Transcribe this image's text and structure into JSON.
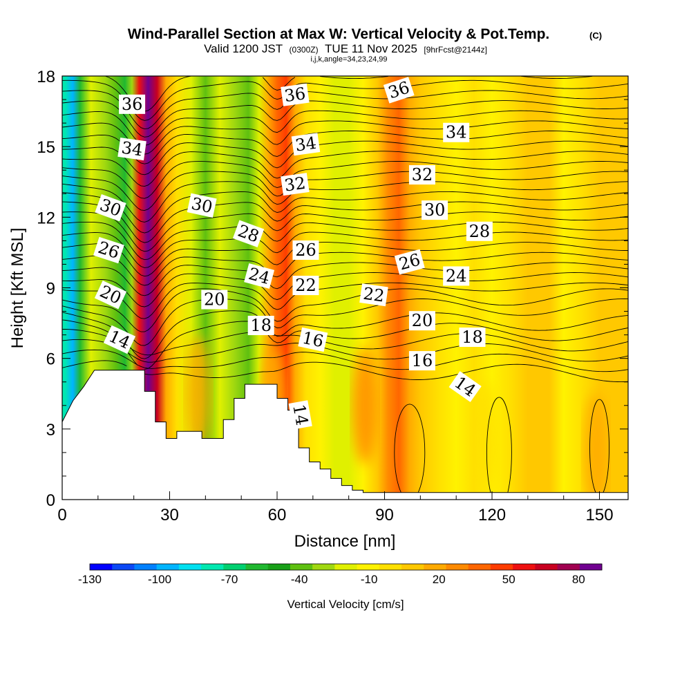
{
  "chart_data": {
    "type": "heatmap",
    "title": "Wind-Parallel Section at Max W: Vertical Velocity & Pot.Temp.",
    "title_mark": "(C)",
    "subtitle_valid": "Valid 1200 JST",
    "subtitle_utc": "(0300Z)",
    "subtitle_date": "TUE 11 Nov 2025",
    "subtitle_fcst": "[9hrFcst@2144z]",
    "subtitle_indices": "i,j,k,angle=34,23,24,99",
    "xlabel": "Distance [nm]",
    "ylabel": "Height [Kft MSL]",
    "xlim": [
      0,
      158
    ],
    "ylim": [
      0,
      18
    ],
    "x_ticks": [
      "0",
      "30",
      "60",
      "90",
      "120",
      "150"
    ],
    "y_ticks": [
      "0",
      "3",
      "6",
      "9",
      "12",
      "15",
      "18"
    ],
    "colorbar": {
      "label": "Vertical Velocity [cm/s]",
      "tick_labels": [
        "-130",
        "-100",
        "-70",
        "-40",
        "-10",
        "20",
        "50",
        "80"
      ],
      "min": -130,
      "max": 90,
      "step": 10,
      "colors": [
        "#0000ff",
        "#0b48f5",
        "#0080ff",
        "#00b4ff",
        "#00e0f0",
        "#00e8b0",
        "#00d070",
        "#20b830",
        "#18a018",
        "#5ec010",
        "#a0d810",
        "#e0f000",
        "#fff200",
        "#ffe000",
        "#ffc800",
        "#ffaa00",
        "#ff8a00",
        "#ff6600",
        "#ff3c00",
        "#ee1010",
        "#c80020",
        "#a00050",
        "#700090"
      ]
    },
    "w_bands": [
      {
        "x": 0.8,
        "w": -80
      },
      {
        "x": 3,
        "w": -100
      },
      {
        "x": 5,
        "w": -60
      },
      {
        "x": 8,
        "w": -20
      },
      {
        "x": 12,
        "w": -30
      },
      {
        "x": 15,
        "w": -40
      },
      {
        "x": 17.5,
        "w": -60
      },
      {
        "x": 19.5,
        "w": -30
      },
      {
        "x": 21.5,
        "w": 60
      },
      {
        "x": 24,
        "w": 90
      },
      {
        "x": 26.5,
        "w": 70
      },
      {
        "x": 29,
        "w": 20
      },
      {
        "x": 32,
        "w": 0
      },
      {
        "x": 36,
        "w": -20
      },
      {
        "x": 40,
        "w": -40
      },
      {
        "x": 44,
        "w": -20
      },
      {
        "x": 48,
        "w": -30
      },
      {
        "x": 52,
        "w": -40
      },
      {
        "x": 55,
        "w": -20
      },
      {
        "x": 57.5,
        "w": 20
      },
      {
        "x": 60,
        "w": 40
      },
      {
        "x": 62.5,
        "w": 50
      },
      {
        "x": 65,
        "w": 20
      },
      {
        "x": 68,
        "w": 0
      },
      {
        "x": 72,
        "w": -10
      },
      {
        "x": 76,
        "w": -20
      },
      {
        "x": 80,
        "w": -20
      },
      {
        "x": 84,
        "w": -10
      },
      {
        "x": 88,
        "w": 10
      },
      {
        "x": 91,
        "w": 30
      },
      {
        "x": 94,
        "w": 40
      },
      {
        "x": 97,
        "w": 20
      },
      {
        "x": 100,
        "w": 10
      },
      {
        "x": 105,
        "w": 0
      },
      {
        "x": 110,
        "w": -10
      },
      {
        "x": 115,
        "w": 0
      },
      {
        "x": 120,
        "w": -10
      },
      {
        "x": 125,
        "w": 0
      },
      {
        "x": 130,
        "w": 10
      },
      {
        "x": 136,
        "w": 10
      },
      {
        "x": 140,
        "w": -10
      },
      {
        "x": 145,
        "w": 0
      },
      {
        "x": 150,
        "w": 10
      },
      {
        "x": 155,
        "w": 10
      }
    ],
    "low_level_blobs": [
      {
        "x": 84.5,
        "y": 4.0,
        "w": 30
      },
      {
        "x": 59,
        "y": 4.0,
        "w": 20
      },
      {
        "x": 38,
        "y": 4.5,
        "w": 20
      },
      {
        "x": 149,
        "y": 2.0,
        "w": 20
      },
      {
        "x": 118,
        "y": 2.5,
        "w": 0
      }
    ],
    "terrain_kft": [
      [
        0,
        3.3
      ],
      [
        3,
        4.2
      ],
      [
        6,
        4.8
      ],
      [
        9,
        5.5
      ],
      [
        23,
        5.5
      ],
      [
        23,
        4.6
      ],
      [
        26,
        4.6
      ],
      [
        26,
        3.3
      ],
      [
        29,
        3.3
      ],
      [
        29,
        2.6
      ],
      [
        32,
        2.6
      ],
      [
        32,
        2.9
      ],
      [
        39,
        2.9
      ],
      [
        39,
        2.6
      ],
      [
        45,
        2.6
      ],
      [
        45,
        3.4
      ],
      [
        48,
        3.4
      ],
      [
        48,
        4.3
      ],
      [
        51,
        4.3
      ],
      [
        51,
        4.9
      ],
      [
        60,
        4.9
      ],
      [
        60,
        4.3
      ],
      [
        63,
        4.3
      ],
      [
        63,
        3.8
      ],
      [
        66,
        3.8
      ],
      [
        66,
        2.2
      ],
      [
        69,
        2.2
      ],
      [
        69,
        1.6
      ],
      [
        72,
        1.6
      ],
      [
        72,
        1.3
      ],
      [
        75,
        1.3
      ],
      [
        75,
        0.9
      ],
      [
        78,
        0.9
      ],
      [
        78,
        0.6
      ],
      [
        81,
        0.6
      ],
      [
        81,
        0.4
      ],
      [
        84,
        0.4
      ],
      [
        84,
        0.3
      ],
      [
        158,
        0.3
      ]
    ],
    "isentrope_labels": [
      {
        "text": "36",
        "x": 19.5,
        "y": 16.8,
        "rot": 0
      },
      {
        "text": "34",
        "x": 19.5,
        "y": 14.9,
        "rot": 8
      },
      {
        "text": "30",
        "x": 13.5,
        "y": 12.4,
        "rot": 20
      },
      {
        "text": "26",
        "x": 13.0,
        "y": 10.6,
        "rot": 18
      },
      {
        "text": "20",
        "x": 13.5,
        "y": 8.7,
        "rot": 25
      },
      {
        "text": "14",
        "x": 16.0,
        "y": 6.8,
        "rot": 25
      },
      {
        "text": "30",
        "x": 39.0,
        "y": 12.5,
        "rot": 12
      },
      {
        "text": "28",
        "x": 52.0,
        "y": 11.3,
        "rot": 20
      },
      {
        "text": "24",
        "x": 55.0,
        "y": 9.5,
        "rot": 15
      },
      {
        "text": "20",
        "x": 42.5,
        "y": 8.5,
        "rot": 0
      },
      {
        "text": "18",
        "x": 55.5,
        "y": 7.4,
        "rot": 0
      },
      {
        "text": "14",
        "x": 66.5,
        "y": 3.6,
        "rot": 80
      },
      {
        "text": "36",
        "x": 65.0,
        "y": 17.2,
        "rot": -8
      },
      {
        "text": "34",
        "x": 68.0,
        "y": 15.1,
        "rot": -8
      },
      {
        "text": "32",
        "x": 65.0,
        "y": 13.4,
        "rot": -8
      },
      {
        "text": "26",
        "x": 68.0,
        "y": 10.6,
        "rot": 0
      },
      {
        "text": "22",
        "x": 68.0,
        "y": 9.1,
        "rot": 0
      },
      {
        "text": "16",
        "x": 70.0,
        "y": 6.8,
        "rot": 12
      },
      {
        "text": "22",
        "x": 87.0,
        "y": 8.7,
        "rot": 8
      },
      {
        "text": "36",
        "x": 94.0,
        "y": 17.4,
        "rot": -18
      },
      {
        "text": "34",
        "x": 110.0,
        "y": 15.6,
        "rot": 0
      },
      {
        "text": "32",
        "x": 100.5,
        "y": 13.8,
        "rot": 0
      },
      {
        "text": "30",
        "x": 104.0,
        "y": 12.3,
        "rot": 0
      },
      {
        "text": "28",
        "x": 116.5,
        "y": 11.4,
        "rot": 0
      },
      {
        "text": "26",
        "x": 97.0,
        "y": 10.1,
        "rot": -15
      },
      {
        "text": "24",
        "x": 110.0,
        "y": 9.5,
        "rot": 0
      },
      {
        "text": "20",
        "x": 100.5,
        "y": 7.6,
        "rot": 0
      },
      {
        "text": "18",
        "x": 114.5,
        "y": 6.9,
        "rot": 0
      },
      {
        "text": "16",
        "x": 100.5,
        "y": 5.9,
        "rot": 0
      },
      {
        "text": "14",
        "x": 112.5,
        "y": 4.8,
        "rot": 35
      }
    ]
  }
}
